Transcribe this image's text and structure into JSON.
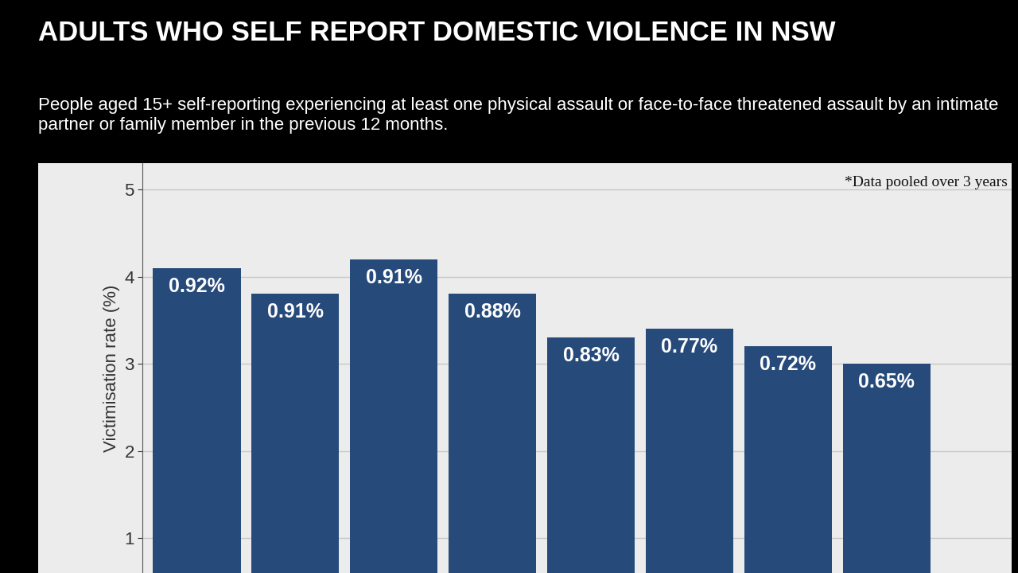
{
  "chart_data": {
    "type": "bar",
    "title": "ADULTS WHO SELF REPORT DOMESTIC VIOLENCE IN NSW",
    "subtitle": "People aged 15+ self-reporting experiencing at least one physical assault or face-to-face threatened assault by an intimate partner or family member in the previous 12 months.",
    "note": "*Data pooled over 3 years",
    "y_label": "Victimisation rate (%)",
    "categories": [
      null,
      null,
      null,
      null,
      null,
      null,
      null,
      null
    ],
    "values": [
      4.1,
      3.8,
      4.2,
      3.8,
      3.3,
      3.4,
      3.2,
      3.0
    ],
    "annotations": [
      "0.92%",
      "0.91%",
      "0.91%",
      "0.88%",
      "0.83%",
      "0.77%",
      "0.72%",
      "0.65%"
    ],
    "color": "#264a7a",
    "ylim": [
      0.6,
      5.3
    ],
    "yticks": [
      1,
      2,
      3,
      4,
      5
    ],
    "grid": true,
    "tick_labels": "y"
  }
}
